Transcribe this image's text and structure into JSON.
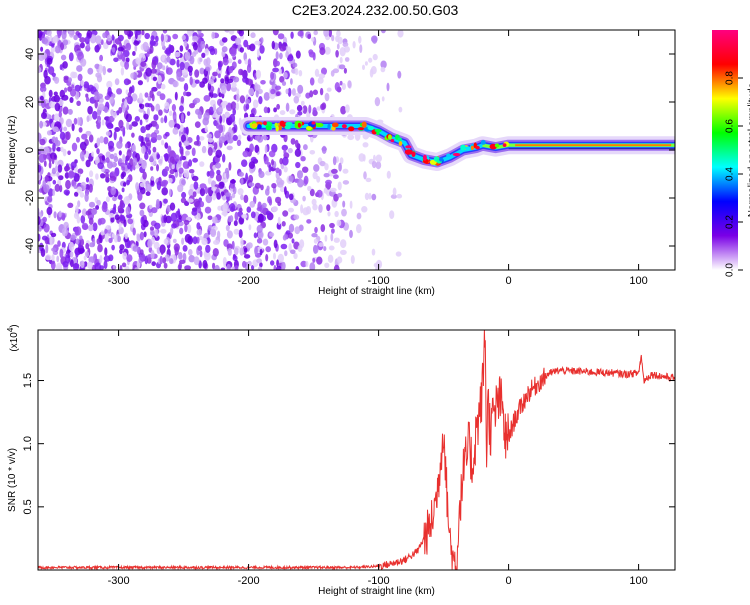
{
  "title": "C2E3.2024.232.00.50.G03",
  "chart_data": [
    {
      "type": "heatmap",
      "xlabel": "Height of straight line (km)",
      "ylabel": "Frequency (Hz)",
      "xlim": [
        -362,
        128
      ],
      "ylim": [
        -50,
        50
      ],
      "x_ticks": [
        -300,
        -200,
        -100,
        0,
        100
      ],
      "y_ticks": [
        -40,
        -20,
        0,
        20,
        40
      ],
      "colorbar": {
        "label": "Normalized spectral amplitude",
        "range": [
          0.0,
          1.0
        ],
        "ticks": [
          0.0,
          0.2,
          0.4,
          0.6,
          0.8
        ],
        "tick_labels": [
          "0.0",
          "0.2",
          "0.4",
          "0.6",
          "0.8"
        ],
        "colormap": [
          "#ffffff",
          "#7a00e6",
          "#0000ff",
          "#00ffff",
          "#00ff00",
          "#ffff00",
          "#ff0000",
          "#ff007f"
        ]
      },
      "ridge": {
        "x": [
          -200,
          -180,
          -150,
          -125,
          -110,
          -100,
          -90,
          -80,
          -75,
          -65,
          -55,
          -45,
          -35,
          -25,
          -20,
          -10,
          0,
          50,
          128
        ],
        "y": [
          10,
          10,
          10,
          10,
          10,
          8,
          5,
          3,
          -2,
          -4,
          -5,
          -3,
          0,
          1,
          2,
          1,
          2,
          2,
          2
        ]
      }
    },
    {
      "type": "line",
      "xlabel": "Height of straight line (km)",
      "ylabel": "SNR (10 * v/v)",
      "y_multiplier": "(x10",
      "y_multiplier_exp": "4",
      "y_multiplier_close": ")",
      "xlim": [
        -362,
        128
      ],
      "ylim": [
        0,
        1.9
      ],
      "x_ticks": [
        -300,
        -200,
        -100,
        0,
        100
      ],
      "y_ticks": [
        0.5,
        1.0,
        1.5
      ],
      "y_tick_labels": [
        "0.5",
        "1.0",
        "1.5"
      ],
      "color": "#e8302e",
      "series": [
        {
          "x": [
            -362,
            -300,
            -200,
            -120,
            -100,
            -90,
            -80,
            -70,
            -60,
            -55,
            -52,
            -50,
            -48,
            -46,
            -44,
            -42,
            -40,
            -38,
            -35,
            -32,
            -30,
            -28,
            -25,
            -22,
            -20,
            -18,
            -17,
            -16,
            -14,
            -12,
            -10,
            -8,
            -5,
            -2,
            0,
            5,
            10,
            15,
            20,
            25,
            30,
            35,
            40,
            60,
            80,
            90,
            100,
            102,
            104,
            110,
            120,
            128
          ],
          "y": [
            0.02,
            0.02,
            0.02,
            0.02,
            0.03,
            0.05,
            0.08,
            0.15,
            0.35,
            0.6,
            0.9,
            1.15,
            0.7,
            0.35,
            0.15,
            0.06,
            0.05,
            0.45,
            0.75,
            0.9,
            1.0,
            0.8,
            1.1,
            1.25,
            1.45,
            1.9,
            0.9,
            1.35,
            1.1,
            1.2,
            1.25,
            1.35,
            1.3,
            1.0,
            1.05,
            1.2,
            1.3,
            1.4,
            1.45,
            1.5,
            1.55,
            1.57,
            1.58,
            1.57,
            1.56,
            1.55,
            1.56,
            1.7,
            1.5,
            1.55,
            1.53,
            1.52
          ]
        }
      ]
    }
  ]
}
